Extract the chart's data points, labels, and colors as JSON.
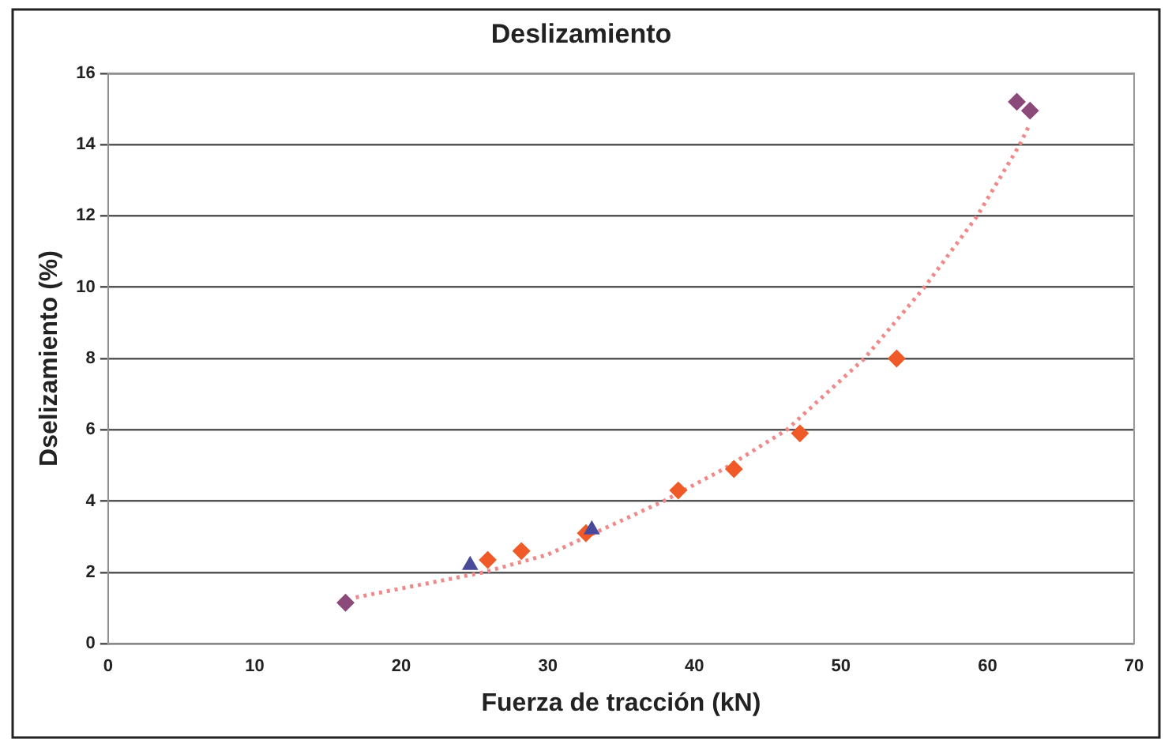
{
  "chart_data": {
    "type": "scatter",
    "title": "Deslizamiento",
    "xlabel": "Fuerza de tracción (kN)",
    "ylabel": "Dselizamiento (%)",
    "xlim": [
      0,
      70
    ],
    "xticks": [
      0,
      10,
      20,
      30,
      40,
      50,
      60,
      70
    ],
    "ylim": [
      0,
      16
    ],
    "yticks": [
      0,
      2,
      4,
      6,
      8,
      10,
      12,
      14,
      16
    ],
    "grid": "y",
    "legend": false,
    "marker": "diamond",
    "series": [
      {
        "color": "#8b4a7a",
        "x": [
          16.2,
          62,
          62.9
        ],
        "values": [
          1.15,
          15.2,
          14.95
        ]
      },
      {
        "color": "#4a4a9a",
        "marker": "triangle",
        "x": [
          24.7,
          33
        ],
        "values": [
          2.2,
          3.2
        ]
      },
      {
        "color": "#f05a28",
        "x": [
          25.9,
          28.2,
          32.6,
          38.9,
          42.7,
          47.2,
          53.8
        ],
        "values": [
          2.35,
          2.6,
          3.1,
          4.3,
          4.9,
          5.9,
          8
        ]
      },
      {
        "type": "line",
        "color": "#f08a8a",
        "marker": "none",
        "line_style": "dotted",
        "x": [
          16.9,
          20,
          25.6,
          30,
          37.9,
          42,
          46.3,
          51.6,
          55.7,
          59.3,
          62.2,
          62.8
        ],
        "values": [
          1.3,
          1.55,
          2,
          2.5,
          4,
          4.9,
          6,
          8,
          10,
          12,
          14,
          14.5
        ]
      }
    ]
  }
}
